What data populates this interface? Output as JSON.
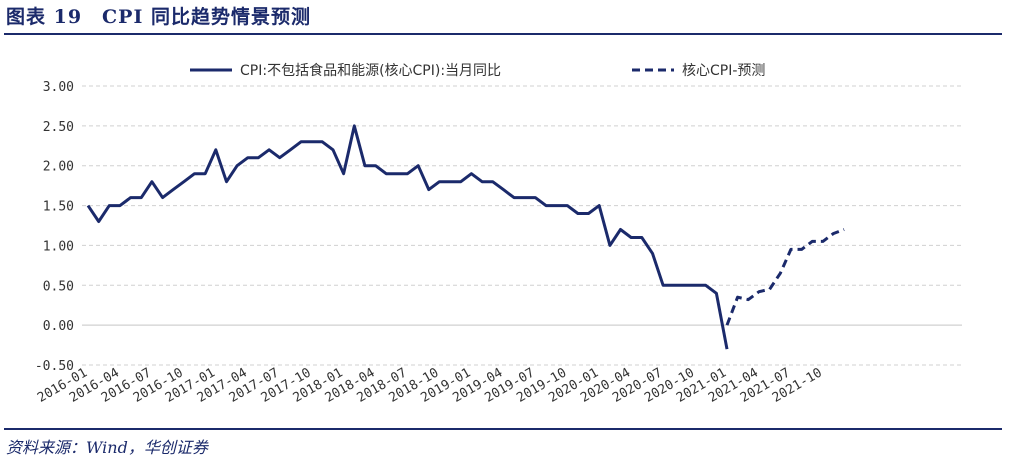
{
  "figure_title": "图表 19　CPI 同比趋势情景预测",
  "source": "资料来源：Wind，华创证券",
  "colors": {
    "series": "#1b2a6b",
    "grid": "#d0d0d0",
    "title": "#1b2a6b"
  },
  "chart_data": {
    "type": "line",
    "ylim": [
      -0.5,
      3.0
    ],
    "yticks": [
      "-0.50",
      "0.00",
      "0.50",
      "1.00",
      "1.50",
      "2.00",
      "2.50",
      "3.00"
    ],
    "grid": "horizontal-dashed",
    "legend_position": "top-center",
    "xticklabels": [
      "2016-01",
      "2016-04",
      "2016-07",
      "2016-10",
      "2017-01",
      "2017-04",
      "2017-07",
      "2017-10",
      "2018-01",
      "2018-04",
      "2018-07",
      "2018-10",
      "2019-01",
      "2019-04",
      "2019-07",
      "2019-10",
      "2020-01",
      "2020-04",
      "2020-07",
      "2020-10",
      "2021-01",
      "2021-04",
      "2021-07",
      "2021-10"
    ],
    "series": [
      {
        "name": "CPI:不包括食品和能源(核心CPI):当月同比",
        "style": "solid",
        "x": [
          "2016-01",
          "2016-02",
          "2016-03",
          "2016-04",
          "2016-05",
          "2016-06",
          "2016-07",
          "2016-08",
          "2016-09",
          "2016-10",
          "2016-11",
          "2016-12",
          "2017-01",
          "2017-02",
          "2017-03",
          "2017-04",
          "2017-05",
          "2017-06",
          "2017-07",
          "2017-08",
          "2017-09",
          "2017-10",
          "2017-11",
          "2017-12",
          "2018-01",
          "2018-02",
          "2018-03",
          "2018-04",
          "2018-05",
          "2018-06",
          "2018-07",
          "2018-08",
          "2018-09",
          "2018-10",
          "2018-11",
          "2018-12",
          "2019-01",
          "2019-02",
          "2019-03",
          "2019-04",
          "2019-05",
          "2019-06",
          "2019-07",
          "2019-08",
          "2019-09",
          "2019-10",
          "2019-11",
          "2019-12",
          "2020-01",
          "2020-02",
          "2020-03",
          "2020-04",
          "2020-05",
          "2020-06",
          "2020-07",
          "2020-08",
          "2020-09",
          "2020-10",
          "2020-11",
          "2020-12",
          "2021-01"
        ],
        "values": [
          1.5,
          1.3,
          1.5,
          1.5,
          1.6,
          1.6,
          1.8,
          1.6,
          1.7,
          1.8,
          1.9,
          1.9,
          2.2,
          1.8,
          2.0,
          2.1,
          2.1,
          2.2,
          2.1,
          2.2,
          2.3,
          2.3,
          2.3,
          2.2,
          1.9,
          2.5,
          2.0,
          2.0,
          1.9,
          1.9,
          1.9,
          2.0,
          1.7,
          1.8,
          1.8,
          1.8,
          1.9,
          1.8,
          1.8,
          1.7,
          1.6,
          1.6,
          1.6,
          1.5,
          1.5,
          1.5,
          1.4,
          1.4,
          1.5,
          1.0,
          1.2,
          1.1,
          1.1,
          0.9,
          0.5,
          0.5,
          0.5,
          0.5,
          0.5,
          0.4,
          -0.3
        ]
      },
      {
        "name": "核心CPI-预测",
        "style": "dashed",
        "x": [
          "2021-01",
          "2021-02",
          "2021-03",
          "2021-04",
          "2021-05",
          "2021-06",
          "2021-07",
          "2021-08",
          "2021-09",
          "2021-10",
          "2021-11",
          "2021-12"
        ],
        "values": [
          0.0,
          0.35,
          0.32,
          0.42,
          0.45,
          0.65,
          0.95,
          0.95,
          1.05,
          1.05,
          1.15,
          1.2
        ]
      }
    ]
  }
}
